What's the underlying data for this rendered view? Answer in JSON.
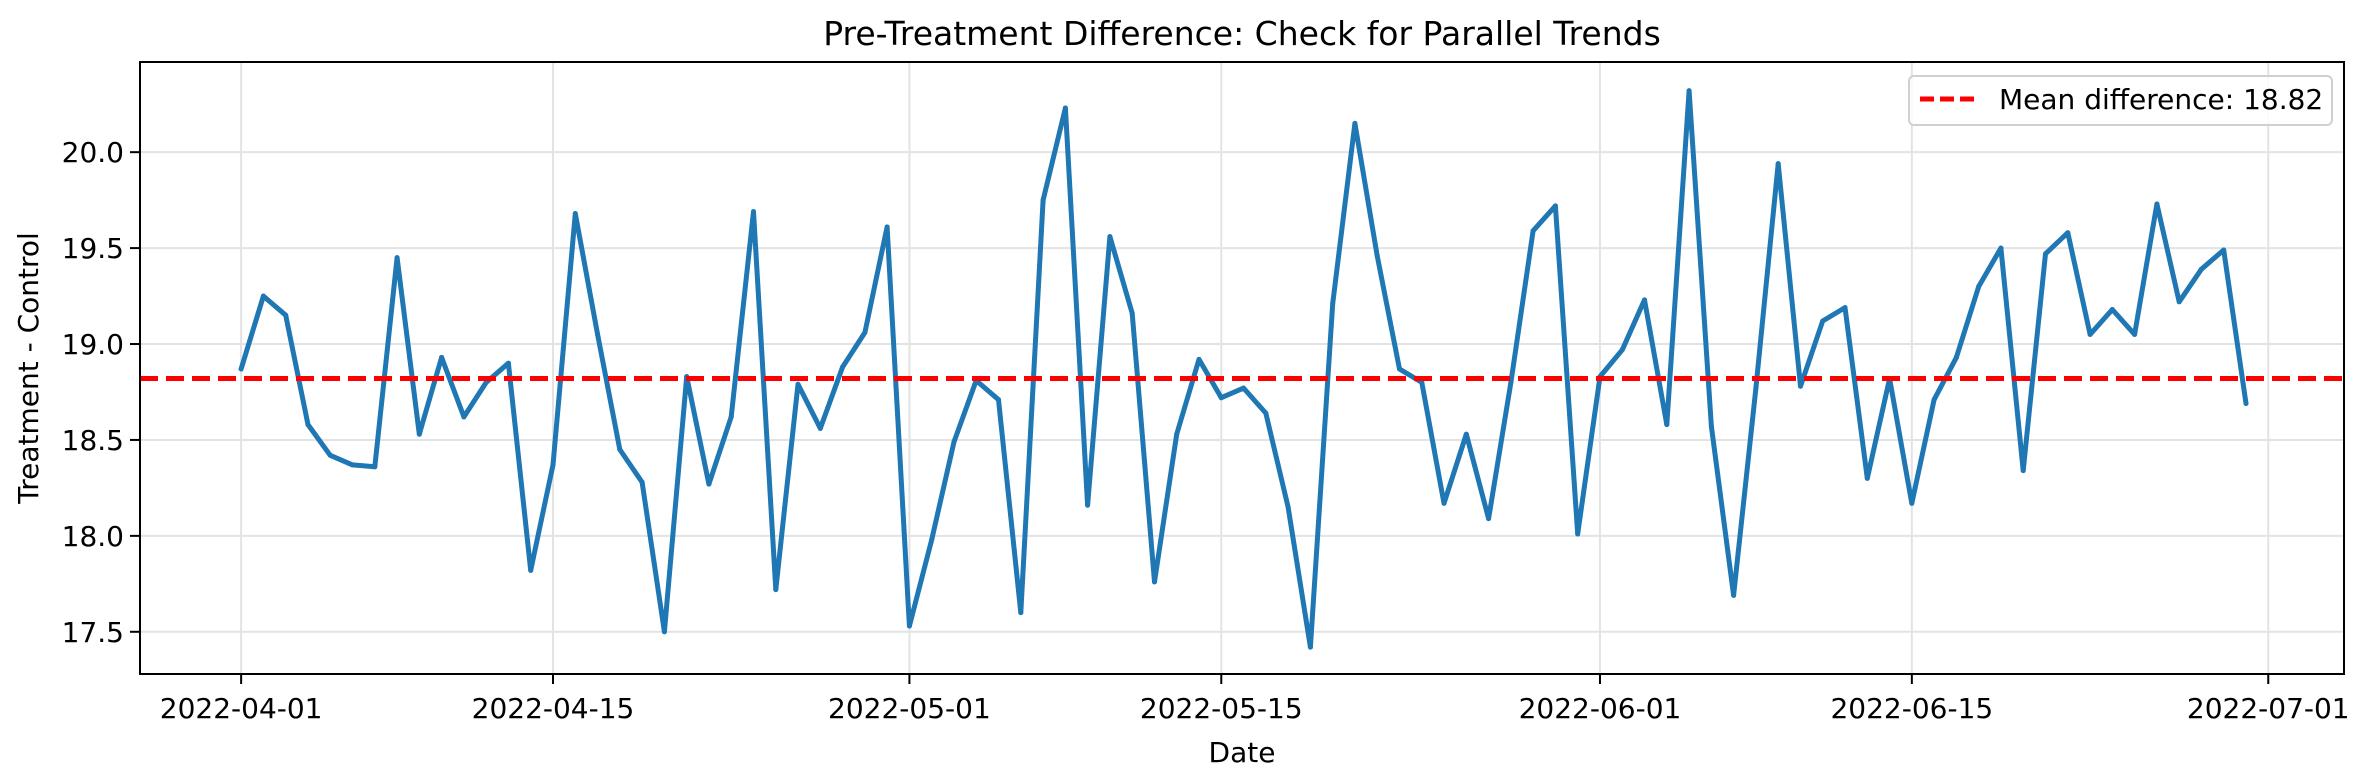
{
  "chart_data": {
    "type": "line",
    "title": "Pre-Treatment Difference: Check for Parallel Trends",
    "xlabel": "Date",
    "ylabel": "Treatment - Control",
    "xlim": [
      "2022-03-27",
      "2022-07-04"
    ],
    "ylim": [
      17.28,
      20.47
    ],
    "x_ticks": [
      "2022-04-01",
      "2022-04-15",
      "2022-05-01",
      "2022-05-15",
      "2022-06-01",
      "2022-06-15",
      "2022-07-01"
    ],
    "y_ticks": [
      "17.5",
      "18.0",
      "18.5",
      "19.0",
      "19.5",
      "20.0"
    ],
    "grid": true,
    "legend_position": "top-right",
    "series": [
      {
        "color": "#1f77b4",
        "x": [
          "2022-04-01",
          "2022-04-02",
          "2022-04-03",
          "2022-04-04",
          "2022-04-05",
          "2022-04-06",
          "2022-04-07",
          "2022-04-08",
          "2022-04-09",
          "2022-04-10",
          "2022-04-11",
          "2022-04-12",
          "2022-04-13",
          "2022-04-14",
          "2022-04-15",
          "2022-04-16",
          "2022-04-17",
          "2022-04-18",
          "2022-04-19",
          "2022-04-20",
          "2022-04-21",
          "2022-04-22",
          "2022-04-23",
          "2022-04-24",
          "2022-04-25",
          "2022-04-26",
          "2022-04-27",
          "2022-04-28",
          "2022-04-29",
          "2022-04-30",
          "2022-05-01",
          "2022-05-02",
          "2022-05-03",
          "2022-05-04",
          "2022-05-05",
          "2022-05-06",
          "2022-05-07",
          "2022-05-08",
          "2022-05-09",
          "2022-05-10",
          "2022-05-11",
          "2022-05-12",
          "2022-05-13",
          "2022-05-14",
          "2022-05-15",
          "2022-05-16",
          "2022-05-17",
          "2022-05-18",
          "2022-05-19",
          "2022-05-20",
          "2022-05-21",
          "2022-05-22",
          "2022-05-23",
          "2022-05-24",
          "2022-05-25",
          "2022-05-26",
          "2022-05-27",
          "2022-05-28",
          "2022-05-29",
          "2022-05-30",
          "2022-05-31",
          "2022-06-01",
          "2022-06-02",
          "2022-06-03",
          "2022-06-04",
          "2022-06-05",
          "2022-06-06",
          "2022-06-07",
          "2022-06-08",
          "2022-06-09",
          "2022-06-10",
          "2022-06-11",
          "2022-06-12",
          "2022-06-13",
          "2022-06-14",
          "2022-06-15",
          "2022-06-16",
          "2022-06-17",
          "2022-06-18",
          "2022-06-19",
          "2022-06-20",
          "2022-06-21",
          "2022-06-22",
          "2022-06-23",
          "2022-06-24",
          "2022-06-25",
          "2022-06-26",
          "2022-06-27",
          "2022-06-28",
          "2022-06-29",
          "2022-06-30"
        ],
        "values": [
          18.87,
          19.25,
          19.15,
          18.58,
          18.42,
          18.37,
          18.36,
          19.45,
          18.53,
          18.93,
          18.62,
          18.8,
          18.9,
          17.82,
          18.37,
          19.68,
          19.05,
          18.45,
          18.28,
          17.5,
          18.83,
          18.27,
          18.62,
          19.69,
          17.72,
          18.79,
          18.56,
          18.88,
          19.06,
          19.61,
          17.53,
          17.98,
          18.49,
          18.81,
          18.71,
          17.6,
          19.75,
          20.23,
          18.16,
          19.56,
          19.16,
          17.76,
          18.53,
          18.92,
          18.72,
          18.77,
          18.64,
          18.15,
          17.42,
          19.21,
          20.15,
          19.46,
          18.87,
          18.8,
          18.17,
          18.53,
          18.09,
          18.8,
          19.59,
          19.72,
          18.01,
          18.83,
          18.97,
          19.23,
          18.58,
          20.32,
          18.57,
          17.69,
          18.77,
          19.94,
          18.78,
          19.12,
          19.19,
          18.3,
          18.82,
          18.17,
          18.71,
          18.93,
          19.3,
          19.5,
          18.34,
          19.47,
          19.58,
          19.05,
          19.18,
          19.05,
          19.73,
          19.22,
          19.39,
          19.49,
          18.69
        ]
      }
    ],
    "reference_line": {
      "label": "Mean difference: 18.82",
      "value": 18.82,
      "color": "#ff0000",
      "style": "dashed"
    }
  }
}
